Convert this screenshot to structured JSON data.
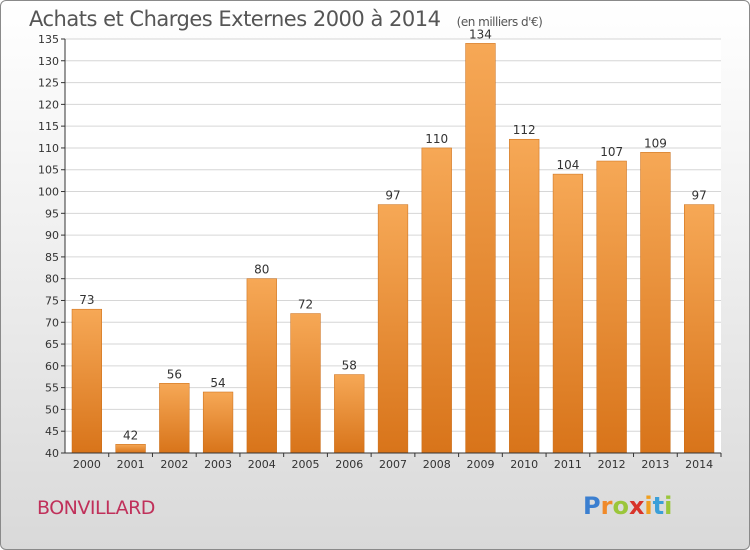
{
  "title": "Achats et Charges Externes 2000 à 2014",
  "subtitle": "(en milliers d'€)",
  "place": "BONVILLARD",
  "logo": {
    "text": "Proxiti",
    "letters": [
      {
        "ch": "P",
        "color": "#3b7fd0"
      },
      {
        "ch": "r",
        "color": "#f08a2a"
      },
      {
        "ch": "o",
        "color": "#9bc63b"
      },
      {
        "ch": "x",
        "color": "#d8342a"
      },
      {
        "ch": "i",
        "color": "#f0a020"
      },
      {
        "ch": "t",
        "color": "#3b9fd8"
      },
      {
        "ch": "i",
        "color": "#9bc63b"
      }
    ]
  },
  "colors": {
    "bar_light": "#f6a856",
    "bar_dark": "#d8741a",
    "grid": "#d6d6d6",
    "axis": "#333333",
    "label": "#333333"
  },
  "chart_data": {
    "type": "bar",
    "categories": [
      "2000",
      "2001",
      "2002",
      "2003",
      "2004",
      "2005",
      "2006",
      "2007",
      "2008",
      "2009",
      "2010",
      "2011",
      "2012",
      "2013",
      "2014"
    ],
    "values": [
      73,
      42,
      56,
      54,
      80,
      72,
      58,
      97,
      110,
      134,
      112,
      104,
      107,
      109,
      97
    ],
    "ylim": [
      40,
      135
    ],
    "yticks": [
      40,
      45,
      50,
      55,
      60,
      65,
      70,
      75,
      80,
      85,
      90,
      95,
      100,
      105,
      110,
      115,
      120,
      125,
      130,
      135
    ],
    "grid": true,
    "data_labels": true
  }
}
